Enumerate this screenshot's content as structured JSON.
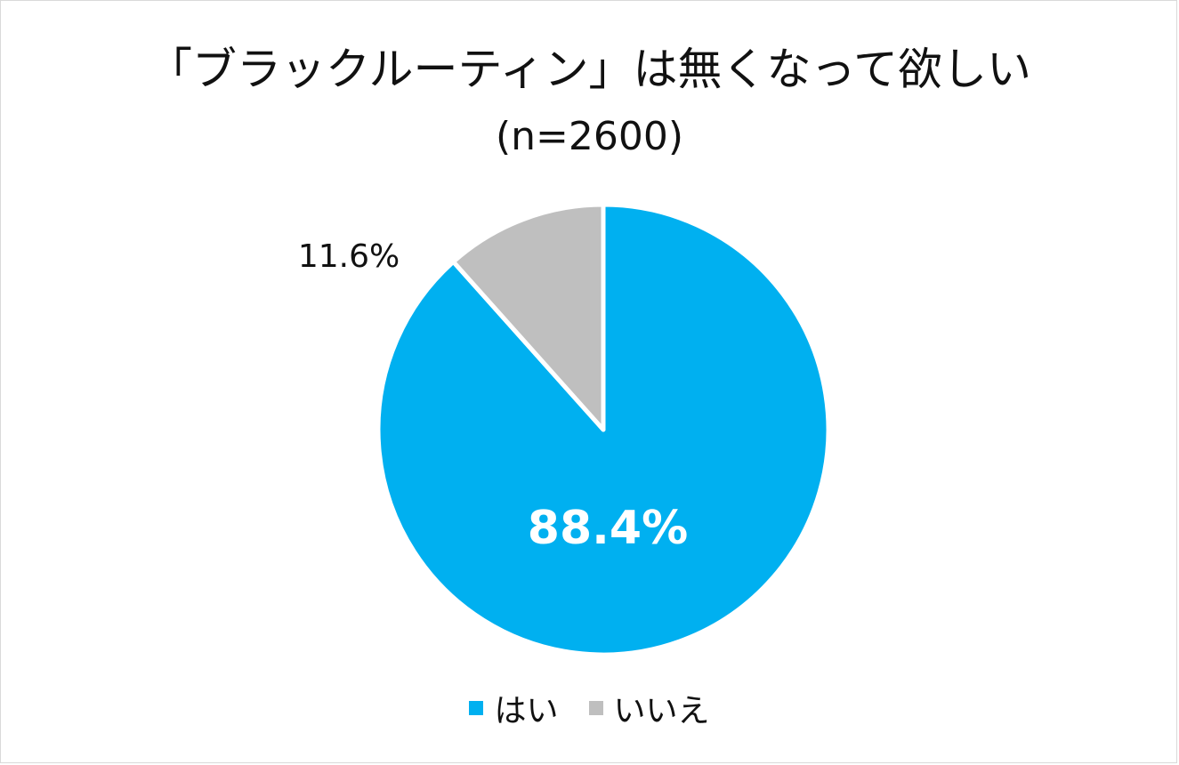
{
  "chart_data": {
    "type": "pie",
    "title": "「ブラックルーティン」は無くなって欲しい",
    "subtitle": "(n=2600)",
    "series": [
      {
        "name": "はい",
        "value": 88.4,
        "label": "88.4%",
        "color": "#00B0F0"
      },
      {
        "name": "いいえ",
        "value": 11.6,
        "label": "11.6%",
        "color": "#BFBFBF"
      }
    ],
    "legend_position": "bottom"
  }
}
